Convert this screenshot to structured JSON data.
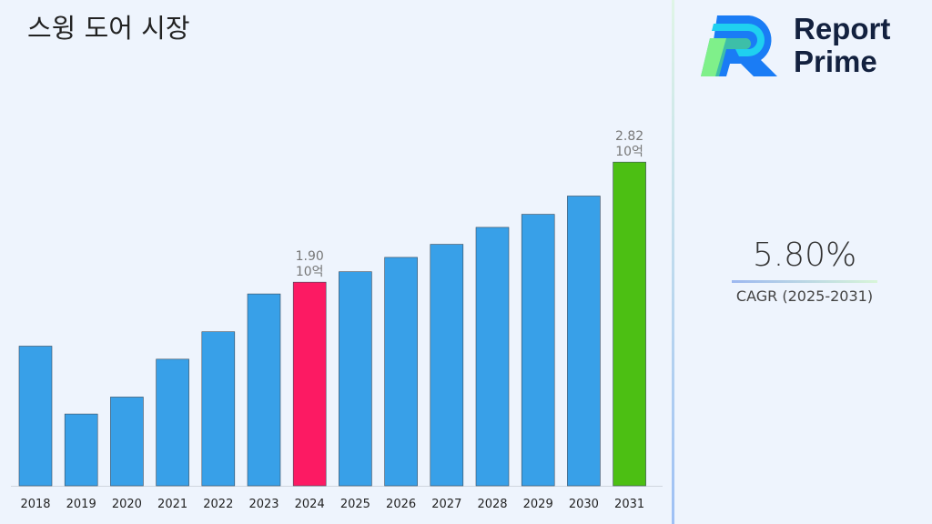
{
  "title": "스윙 도어 시장",
  "logo": {
    "line1": "Report",
    "line2": "Prime"
  },
  "cagr": {
    "value": "5.80%",
    "label": "CAGR (2025-2031)"
  },
  "colors": {
    "default_bar": "#38a0e8",
    "highlight_2024": "#fc1a63",
    "highlight_2031": "#4cbf13"
  },
  "chart_data": {
    "type": "bar",
    "title": "스윙 도어 시장",
    "categories": [
      "2018",
      "2019",
      "2020",
      "2021",
      "2022",
      "2023",
      "2024",
      "2025",
      "2026",
      "2027",
      "2028",
      "2029",
      "2030",
      "2031"
    ],
    "values": [
      1.41,
      0.89,
      1.02,
      1.31,
      1.52,
      1.81,
      1.9,
      1.98,
      2.09,
      2.19,
      2.32,
      2.42,
      2.56,
      2.82
    ],
    "unit": "10억",
    "data_labels": [
      {
        "category": "2024",
        "value": "1.90",
        "unit": "10억"
      },
      {
        "category": "2031",
        "value": "2.82",
        "unit": "10억"
      }
    ],
    "ylim": [
      0.34,
      3.0
    ],
    "grid": false
  }
}
